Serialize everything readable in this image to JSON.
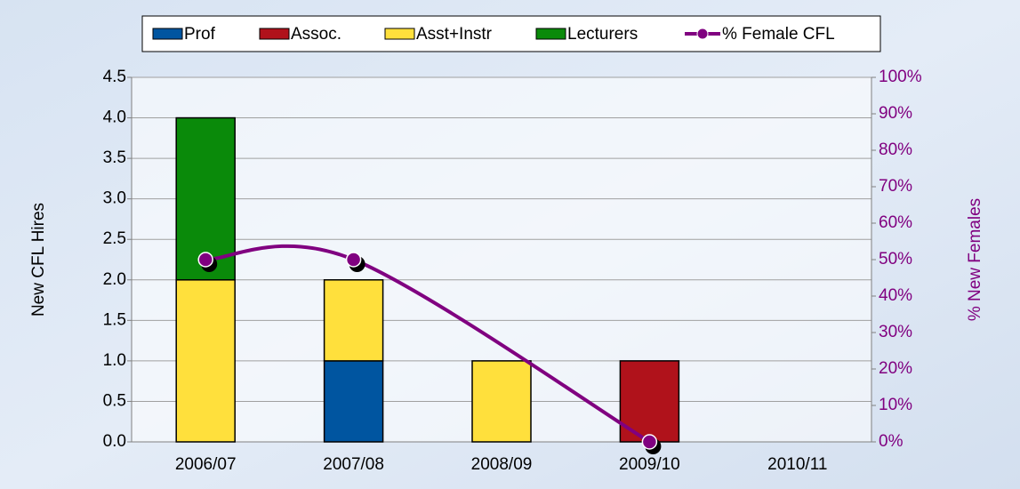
{
  "chart_data": {
    "type": "bar",
    "stacked": true,
    "categories": [
      "2006/07",
      "2007/08",
      "2008/09",
      "2009/10",
      "2010/11"
    ],
    "series": [
      {
        "name": "Prof",
        "color": "#0055a0",
        "values": [
          0,
          1,
          0,
          0,
          0
        ]
      },
      {
        "name": "Assoc.",
        "color": "#b0121b",
        "values": [
          0,
          0,
          0,
          1,
          0
        ]
      },
      {
        "name": "Asst+Instr",
        "color": "#ffe03c",
        "values": [
          2,
          1,
          1,
          0,
          0
        ]
      },
      {
        "name": "Lecturers",
        "color": "#0a8a0a",
        "values": [
          2,
          0,
          0,
          0,
          0
        ]
      },
      {
        "name": "% Female CFL",
        "type": "line",
        "axis": "y2",
        "color": "#800080",
        "smooth": true,
        "connect_gaps": true,
        "values": [
          50,
          50,
          null,
          0,
          null
        ]
      }
    ],
    "ylabel": "New CFL Hires",
    "y2label": "% New Females",
    "ylim": [
      0,
      4.5
    ],
    "yticks": [
      {
        "value": 0,
        "label": "0.0"
      },
      0.5,
      {
        "value": 1,
        "label": "1.0"
      },
      1.5,
      {
        "value": 2,
        "label": "2.0"
      },
      2.5,
      {
        "value": 3,
        "label": "3.0"
      },
      3.5,
      {
        "value": 4,
        "label": "4.0"
      },
      4.5
    ],
    "y2lim": [
      0,
      100
    ],
    "y2ticks": [
      {
        "value": 0,
        "label": "0%"
      },
      {
        "value": 10,
        "label": "10%"
      },
      {
        "value": 20,
        "label": "20%"
      },
      {
        "value": 30,
        "label": "30%"
      },
      {
        "value": 40,
        "label": "40%"
      },
      {
        "value": 50,
        "label": "50%"
      },
      {
        "value": 60,
        "label": "60%"
      },
      {
        "value": 70,
        "label": "70%"
      },
      {
        "value": 80,
        "label": "80%"
      },
      {
        "value": 90,
        "label": "90%"
      },
      {
        "value": 100,
        "label": "100%"
      }
    ],
    "grid": true,
    "legend": "top"
  }
}
